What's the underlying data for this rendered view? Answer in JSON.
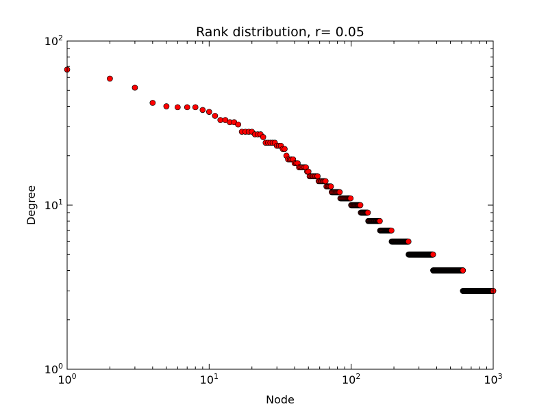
{
  "chart_data": {
    "type": "scatter",
    "title": "Rank distribution, r= 0.05",
    "xlabel": "Node",
    "ylabel": "Degree",
    "xscale": "log",
    "yscale": "log",
    "xlim": [
      1,
      1000
    ],
    "ylim": [
      1,
      100
    ],
    "grid": false,
    "legend": "none",
    "x_ticks": [
      {
        "value": 1,
        "base": "10",
        "exp": "0"
      },
      {
        "value": 10,
        "base": "10",
        "exp": "1"
      },
      {
        "value": 100,
        "base": "10",
        "exp": "2"
      },
      {
        "value": 1000,
        "base": "10",
        "exp": "3"
      }
    ],
    "y_ticks": [
      {
        "value": 1,
        "base": "10",
        "exp": "0"
      },
      {
        "value": 10,
        "base": "10",
        "exp": "1"
      },
      {
        "value": 100,
        "base": "10",
        "exp": "2"
      }
    ],
    "marker_fill": "#ff0000",
    "marker_edge": "#000000",
    "steps": [
      {
        "degree": 3,
        "from": 613,
        "to": 1000
      },
      {
        "degree": 4,
        "from": 378,
        "to": 612
      },
      {
        "degree": 5,
        "from": 254,
        "to": 377
      },
      {
        "degree": 6,
        "from": 193,
        "to": 253
      },
      {
        "degree": 7,
        "from": 160,
        "to": 192
      },
      {
        "degree": 8,
        "from": 132,
        "to": 159
      },
      {
        "degree": 9,
        "from": 117,
        "to": 131
      },
      {
        "degree": 10,
        "from": 100,
        "to": 116
      },
      {
        "degree": 11,
        "from": 84,
        "to": 99
      },
      {
        "degree": 12,
        "from": 73,
        "to": 83
      },
      {
        "degree": 13,
        "from": 67,
        "to": 72
      },
      {
        "degree": 14,
        "from": 59,
        "to": 66
      },
      {
        "degree": 15,
        "from": 51,
        "to": 58
      },
      {
        "degree": 16,
        "from": 49,
        "to": 50
      },
      {
        "degree": 17,
        "from": 43,
        "to": 48
      },
      {
        "degree": 18,
        "from": 40,
        "to": 42
      },
      {
        "degree": 19,
        "from": 37,
        "to": 39
      }
    ],
    "points": [
      {
        "x": 1,
        "y": 67
      },
      {
        "x": 2,
        "y": 59
      },
      {
        "x": 3,
        "y": 52
      },
      {
        "x": 4,
        "y": 42
      },
      {
        "x": 5,
        "y": 40
      },
      {
        "x": 6,
        "y": 39.5
      },
      {
        "x": 7,
        "y": 39.5
      },
      {
        "x": 8,
        "y": 39.5
      },
      {
        "x": 9,
        "y": 38
      },
      {
        "x": 10,
        "y": 37
      },
      {
        "x": 11,
        "y": 35
      },
      {
        "x": 12,
        "y": 33
      },
      {
        "x": 13,
        "y": 33
      },
      {
        "x": 14,
        "y": 32
      },
      {
        "x": 15,
        "y": 32
      },
      {
        "x": 16,
        "y": 31
      },
      {
        "x": 17,
        "y": 28
      },
      {
        "x": 18,
        "y": 28
      },
      {
        "x": 19,
        "y": 28
      },
      {
        "x": 20,
        "y": 28
      },
      {
        "x": 21,
        "y": 27
      },
      {
        "x": 22,
        "y": 27
      },
      {
        "x": 23,
        "y": 27
      },
      {
        "x": 24,
        "y": 26
      },
      {
        "x": 25,
        "y": 24
      },
      {
        "x": 26,
        "y": 24
      },
      {
        "x": 27,
        "y": 24
      },
      {
        "x": 28,
        "y": 24
      },
      {
        "x": 29,
        "y": 24
      },
      {
        "x": 30,
        "y": 23
      },
      {
        "x": 31,
        "y": 23
      },
      {
        "x": 32,
        "y": 23
      },
      {
        "x": 33,
        "y": 22
      },
      {
        "x": 34,
        "y": 22
      },
      {
        "x": 35,
        "y": 20
      },
      {
        "x": 36,
        "y": 19
      }
    ]
  }
}
